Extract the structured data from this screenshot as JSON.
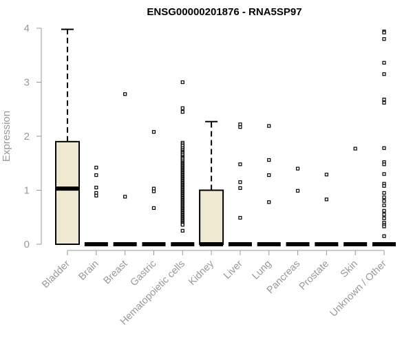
{
  "chart_data": {
    "type": "box",
    "title": "ENSG00000201876 - RNA5SP97",
    "ylabel": "Expression",
    "xlabel": "",
    "ylim": [
      0,
      4
    ],
    "yticks": [
      "0",
      "1",
      "2",
      "3",
      "4"
    ],
    "categories": [
      "Bladder",
      "Brain",
      "Breast",
      "Gastric",
      "Hematopoietic cells",
      "Kidney",
      "Liver",
      "Lung",
      "Pancreas",
      "Prostate",
      "Skin",
      "Unknown / Other"
    ],
    "boxes": [
      {
        "q1": 0,
        "median": 1.03,
        "q3": 1.9,
        "whisker_low": 0,
        "whisker_high": 3.98,
        "outliers": []
      },
      {
        "q1": 0,
        "median": 0,
        "q3": 0,
        "whisker_low": 0,
        "whisker_high": 0,
        "outliers": [
          1.42,
          1.28,
          1.05,
          0.95,
          0.9
        ]
      },
      {
        "q1": 0,
        "median": 0,
        "q3": 0,
        "whisker_low": 0,
        "whisker_high": 0,
        "outliers": [
          2.78,
          0.88
        ]
      },
      {
        "q1": 0,
        "median": 0,
        "q3": 0,
        "whisker_low": 0,
        "whisker_high": 0,
        "outliers": [
          2.08,
          1.03,
          0.98,
          0.67
        ]
      },
      {
        "q1": 0,
        "median": 0,
        "q3": 0,
        "whisker_low": 0,
        "whisker_high": 0,
        "outliers": [
          3.0,
          2.52,
          2.45,
          1.88,
          1.85,
          1.82,
          1.78,
          1.75,
          1.72,
          1.7,
          1.68,
          1.65,
          1.62,
          1.6,
          1.58,
          1.55,
          1.52,
          1.5,
          1.48,
          1.46,
          1.44,
          1.42,
          1.4,
          1.38,
          1.36,
          1.34,
          1.32,
          1.3,
          1.28,
          1.26,
          1.24,
          1.22,
          1.2,
          1.18,
          1.16,
          1.14,
          1.12,
          1.1,
          1.08,
          1.06,
          1.04,
          1.02,
          1.0,
          0.98,
          0.96,
          0.94,
          0.92,
          0.9,
          0.88,
          0.86,
          0.84,
          0.82,
          0.8,
          0.78,
          0.76,
          0.74,
          0.72,
          0.7,
          0.68,
          0.66,
          0.64,
          0.62,
          0.6,
          0.58,
          0.56,
          0.54,
          0.52,
          0.5,
          0.48,
          0.46,
          0.44,
          0.42,
          0.4,
          0.38,
          0.36,
          0.25
        ]
      },
      {
        "q1": 0,
        "median": 0,
        "q3": 1.0,
        "whisker_low": 0,
        "whisker_high": 2.27,
        "outliers": []
      },
      {
        "q1": 0,
        "median": 0,
        "q3": 0,
        "whisker_low": 0,
        "whisker_high": 0,
        "outliers": [
          2.22,
          2.17,
          1.48,
          1.15,
          1.04,
          0.49
        ]
      },
      {
        "q1": 0,
        "median": 0,
        "q3": 0,
        "whisker_low": 0,
        "whisker_high": 0,
        "outliers": [
          2.19,
          1.56,
          1.28,
          0.78
        ]
      },
      {
        "q1": 0,
        "median": 0,
        "q3": 0,
        "whisker_low": 0,
        "whisker_high": 0,
        "outliers": [
          1.4,
          0.99
        ]
      },
      {
        "q1": 0,
        "median": 0,
        "q3": 0,
        "whisker_low": 0,
        "whisker_high": 0,
        "outliers": [
          1.29,
          0.83
        ]
      },
      {
        "q1": 0,
        "median": 0,
        "q3": 0,
        "whisker_low": 0,
        "whisker_high": 0,
        "outliers": [
          1.77
        ]
      },
      {
        "q1": 0,
        "median": 0,
        "q3": 0,
        "whisker_low": 0,
        "whisker_high": 0,
        "outliers": [
          3.94,
          3.92,
          3.8,
          3.36,
          3.15,
          2.68,
          2.62,
          1.78,
          1.52,
          1.48,
          1.3,
          1.12,
          1.08,
          0.95,
          0.87,
          0.8,
          0.72,
          0.62,
          0.55,
          0.48,
          0.4,
          0.36,
          0.33,
          0.15
        ]
      }
    ]
  }
}
